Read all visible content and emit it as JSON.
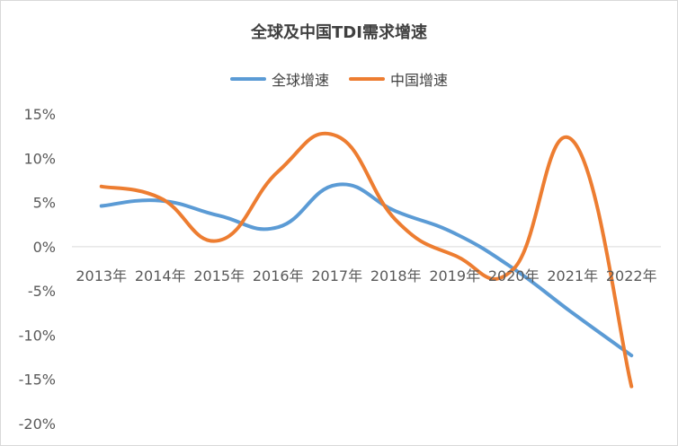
{
  "chart_data": {
    "type": "line",
    "title": "全球及中国TDI需求增速",
    "categories": [
      "2013年",
      "2014年",
      "2015年",
      "2016年",
      "2017年",
      "2018年",
      "2019年",
      "2020年",
      "2021年",
      "2022年"
    ],
    "y_ticks": [
      "15%",
      "10%",
      "5%",
      "0%",
      "-5%",
      "-10%",
      "-15%",
      "-20%"
    ],
    "ylim": [
      -20,
      15
    ],
    "legend_position": "top",
    "grid": false,
    "series": [
      {
        "name": "全球增速",
        "color": "#5b9bd5",
        "values": [
          4.6,
          5.2,
          3.5,
          2.2,
          7.0,
          4.0,
          1.5,
          -2.5,
          -7.5,
          -12.3
        ]
      },
      {
        "name": "中国增速",
        "color": "#ed7d31",
        "values": [
          6.8,
          5.5,
          0.7,
          8.5,
          12.5,
          3.0,
          -1.0,
          -2.5,
          12.0,
          -15.8
        ]
      }
    ]
  }
}
